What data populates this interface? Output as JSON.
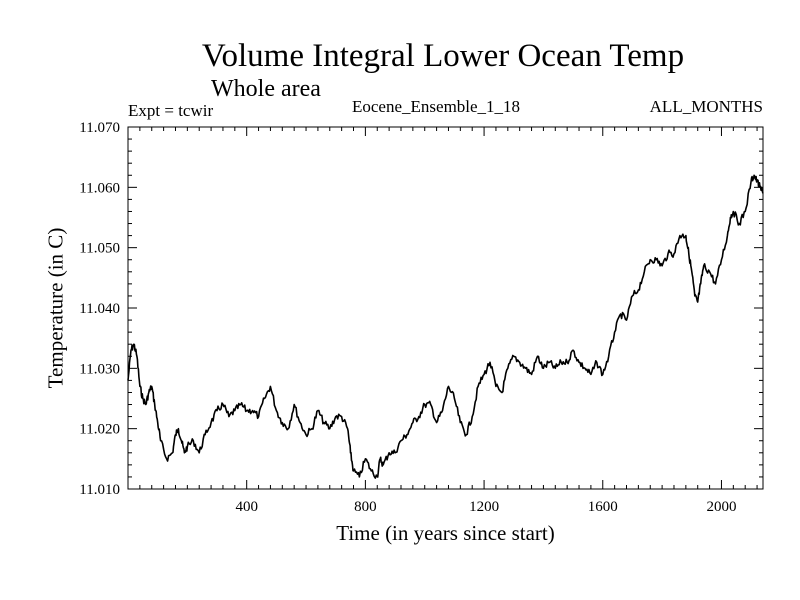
{
  "chart_data": {
    "type": "line",
    "title": "Volume Integral Lower Ocean Temp",
    "subtitle": "Whole area",
    "annotations": {
      "experiment": "Expt = tcwir",
      "ensemble": "Eocene_Ensemble_1_18",
      "months": "ALL_MONTHS"
    },
    "xlabel": "Time (in years since start)",
    "ylabel": "Temperature (in C)",
    "xlim": [
      0,
      2140
    ],
    "ylim": [
      11.01,
      11.07
    ],
    "xticks": [
      400,
      800,
      1200,
      1600,
      2000
    ],
    "xtick_labels": [
      "400",
      "800",
      "1200",
      "1600",
      "2000"
    ],
    "yticks": [
      11.01,
      11.02,
      11.03,
      11.04,
      11.05,
      11.06,
      11.07
    ],
    "ytick_labels": [
      "11.010",
      "11.020",
      "11.030",
      "11.040",
      "11.050",
      "11.060",
      "11.070"
    ],
    "grid": false,
    "line_color": "#000000",
    "series": [
      {
        "x": [
          0,
          10,
          20,
          30,
          40,
          50,
          60,
          70,
          80,
          90,
          100,
          110,
          130,
          150,
          160,
          170,
          180,
          190,
          200,
          220,
          240,
          260,
          280,
          300,
          320,
          340,
          360,
          380,
          400,
          420,
          440,
          460,
          480,
          500,
          520,
          540,
          560,
          580,
          600,
          620,
          640,
          660,
          680,
          700,
          720,
          740,
          750,
          760,
          780,
          800,
          820,
          840,
          850,
          860,
          880,
          900,
          920,
          940,
          960,
          980,
          1000,
          1020,
          1040,
          1060,
          1080,
          1100,
          1120,
          1140,
          1160,
          1180,
          1200,
          1220,
          1240,
          1260,
          1280,
          1300,
          1320,
          1340,
          1360,
          1380,
          1400,
          1420,
          1440,
          1460,
          1480,
          1500,
          1520,
          1540,
          1560,
          1580,
          1600,
          1620,
          1640,
          1660,
          1680,
          1700,
          1720,
          1740,
          1760,
          1780,
          1800,
          1820,
          1840,
          1860,
          1880,
          1890,
          1900,
          1910,
          1920,
          1930,
          1940,
          1960,
          1980,
          2000,
          2020,
          2030,
          2040,
          2060,
          2080,
          2100,
          2110,
          2120,
          2130,
          2140
        ],
        "y": [
          11.028,
          11.033,
          11.034,
          11.032,
          11.027,
          11.025,
          11.024,
          11.026,
          11.027,
          11.024,
          11.021,
          11.018,
          11.015,
          11.016,
          11.019,
          11.02,
          11.018,
          11.016,
          11.017,
          11.018,
          11.016,
          11.019,
          11.021,
          11.023,
          11.024,
          11.022,
          11.023,
          11.024,
          11.023,
          11.023,
          11.022,
          11.025,
          11.027,
          11.023,
          11.021,
          11.02,
          11.024,
          11.021,
          11.019,
          11.02,
          11.023,
          11.021,
          11.02,
          11.022,
          11.022,
          11.02,
          11.016,
          11.013,
          11.012,
          11.015,
          11.013,
          11.012,
          11.015,
          11.014,
          11.016,
          11.016,
          11.018,
          11.019,
          11.021,
          11.022,
          11.024,
          11.024,
          11.021,
          11.023,
          11.027,
          11.025,
          11.021,
          11.019,
          11.022,
          11.027,
          11.029,
          11.031,
          11.027,
          11.026,
          11.03,
          11.032,
          11.031,
          11.03,
          11.029,
          11.032,
          11.03,
          11.031,
          11.03,
          11.031,
          11.031,
          11.033,
          11.031,
          11.03,
          11.029,
          11.031,
          11.029,
          11.032,
          11.036,
          11.039,
          11.038,
          11.042,
          11.043,
          11.046,
          11.048,
          11.048,
          11.047,
          11.049,
          11.049,
          11.052,
          11.052,
          11.049,
          11.046,
          11.042,
          11.041,
          11.044,
          11.047,
          11.046,
          11.044,
          11.048,
          11.052,
          11.055,
          11.056,
          11.054,
          11.056,
          11.061,
          11.062,
          11.061,
          11.06,
          11.059
        ]
      }
    ]
  }
}
